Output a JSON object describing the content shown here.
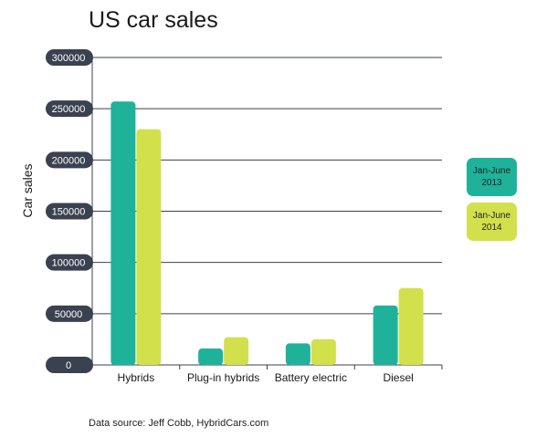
{
  "chart_data": {
    "type": "bar",
    "title": "US car sales",
    "ylabel": "Car sales",
    "xlabel": "",
    "categories": [
      "Hybrids",
      "Plug-in hybrids",
      "Battery electric",
      "Diesel"
    ],
    "series": [
      {
        "name": "Jan-June 2013",
        "values": [
          257000,
          16000,
          21000,
          58000
        ],
        "color": "#1fb29b"
      },
      {
        "name": "Jan-June 2014",
        "values": [
          230000,
          27000,
          25000,
          75000
        ],
        "color": "#d2e04c"
      }
    ],
    "ylim": [
      0,
      300000
    ],
    "yticks": [
      "0",
      "50000",
      "100000",
      "150000",
      "200000",
      "250000",
      "300000"
    ],
    "grid": true,
    "legend_position": "right"
  },
  "legend": {
    "s0_line1": "Jan-June",
    "s0_line2": "2013",
    "s1_line1": "Jan-June",
    "s1_line2": "2014"
  },
  "source": "Data source: Jeff Cobb, HybridCars.com",
  "colors": {
    "tick_pill": "#3a4150",
    "grid": "#3a4150"
  }
}
